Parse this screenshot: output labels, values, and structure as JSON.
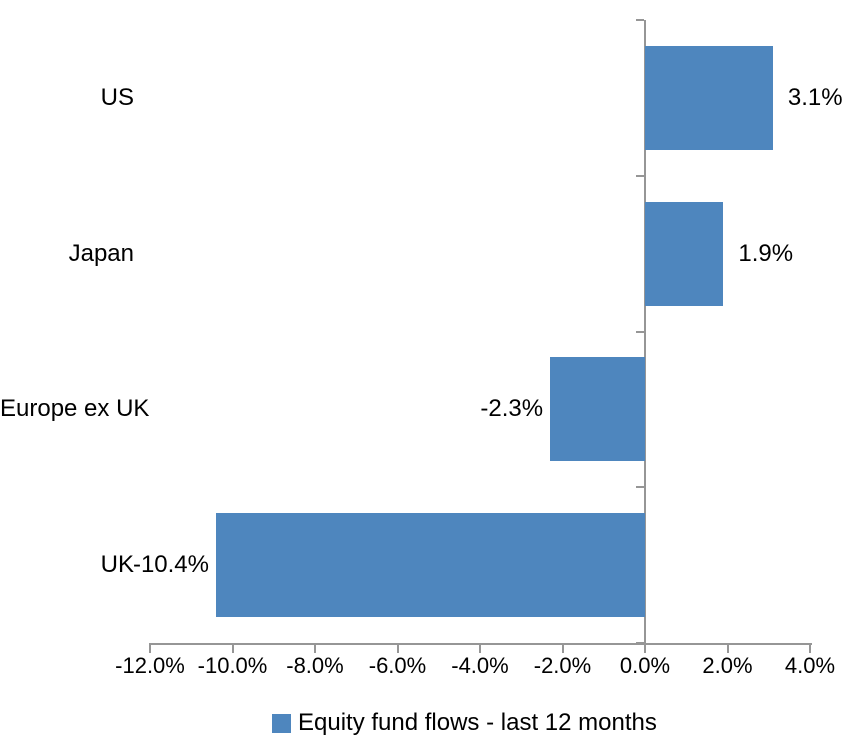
{
  "chart_data": {
    "type": "bar",
    "orientation": "horizontal",
    "title": "",
    "categories": [
      "US",
      "Japan",
      "Europe ex UK",
      "UK"
    ],
    "values": [
      3.1,
      1.9,
      -2.3,
      -10.4
    ],
    "data_labels": [
      "3.1%",
      "1.9%",
      "-2.3%",
      "-10.4%"
    ],
    "xlim": [
      -12,
      4
    ],
    "x_ticks": [
      -12,
      -10,
      -8,
      -6,
      -4,
      -2,
      0,
      2,
      4
    ],
    "x_tick_labels": [
      "-12.0%",
      "-10.0%",
      "-8.0%",
      "-6.0%",
      "-4.0%",
      "-2.0%",
      "0.0%",
      "2.0%",
      "4.0%"
    ],
    "grid": false,
    "legend": {
      "position": "bottom",
      "label": "Equity fund flows - last 12 months"
    },
    "colors": {
      "bar": "#4E86BE",
      "axis": "#969696",
      "text": "#000000",
      "background": "#FFFFFF"
    }
  }
}
